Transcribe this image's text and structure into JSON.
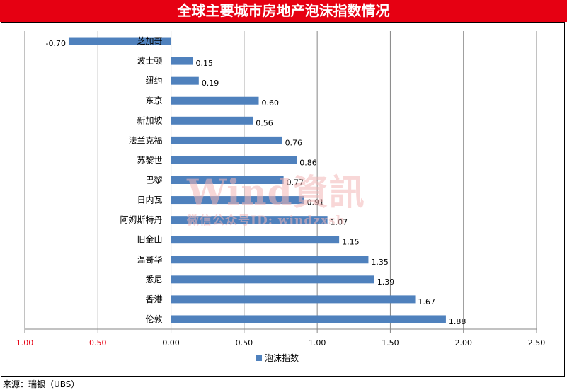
{
  "title": "全球主要城市房地产泡沫指数情况",
  "source": "来源：瑞银（UBS）",
  "watermark": {
    "main": "Wind資訊",
    "sub": "微信公众号ID: windzxsh"
  },
  "colors": {
    "title_bg": "#e60012",
    "bar": "#4f81bd",
    "negative_tick": "#e60012",
    "watermark": "#f3b7b7"
  },
  "chart_data": {
    "type": "bar",
    "orientation": "horizontal",
    "categories": [
      "芝加哥",
      "波士顿",
      "纽约",
      "东京",
      "新加坡",
      "法兰克福",
      "苏黎世",
      "巴黎",
      "日内瓦",
      "阿姆斯特丹",
      "旧金山",
      "温哥华",
      "悉尼",
      "香港",
      "伦敦"
    ],
    "series": [
      {
        "name": "泡沫指数",
        "values": [
          -0.7,
          0.15,
          0.19,
          0.6,
          0.56,
          0.76,
          0.86,
          0.77,
          0.91,
          1.07,
          1.15,
          1.35,
          1.39,
          1.67,
          1.88
        ],
        "labels": [
          "-0.70",
          "0.15",
          "0.19",
          "0.60",
          "0.56",
          "0.76",
          "0.86",
          "0.77",
          "0.91",
          "1.07",
          "1.15",
          "1.35",
          "1.39",
          "1.67",
          "1.88"
        ]
      }
    ],
    "xlim": [
      -1.0,
      2.5
    ],
    "xticks": [
      -1.0,
      -0.5,
      0.0,
      0.5,
      1.0,
      1.5,
      2.0,
      2.5
    ],
    "xtick_labels": [
      "1.00",
      "0.50",
      "0.00",
      "0.50",
      "1.00",
      "1.50",
      "2.00",
      "2.50"
    ],
    "grid": "vertical",
    "legend": "bottom-center"
  }
}
